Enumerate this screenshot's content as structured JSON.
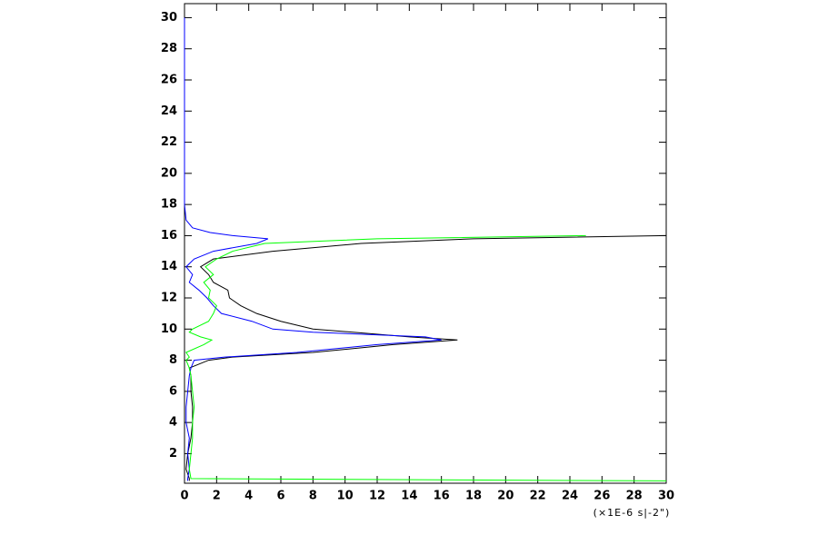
{
  "chart_data": {
    "type": "line",
    "x_label": "(×1E-6 s|-2\")",
    "heights": [
      0.25,
      0.4,
      1,
      2,
      3,
      4,
      5,
      6,
      7,
      7.5,
      8,
      8.2,
      8.5,
      9,
      9.3,
      9.5,
      9.8,
      10,
      10.5,
      11,
      11.5,
      12,
      12.5,
      13,
      13.5,
      14,
      14.5,
      15,
      15.5,
      15.8,
      16,
      16.2,
      16.5,
      17,
      18,
      20,
      25,
      30
    ],
    "series": [
      {
        "color": "#000000",
        "values": [
          0.3,
          0.3,
          0.1,
          0.2,
          0.4,
          0.5,
          0.5,
          0.4,
          0.4,
          0.3,
          1.5,
          3,
          8,
          13,
          17,
          14,
          10.5,
          8,
          6,
          4.5,
          3.5,
          2.8,
          2.7,
          1.8,
          1.5,
          1.0,
          1.8,
          5.5,
          11,
          18,
          30,
          null,
          null,
          null,
          null,
          null,
          null,
          null
        ]
      },
      {
        "color": "#0000ff",
        "values": [
          0.2,
          0.2,
          0.3,
          0.2,
          0.3,
          0.1,
          0.1,
          0.2,
          0.3,
          0.4,
          0.6,
          2.5,
          7,
          12,
          16,
          15,
          8,
          5.5,
          4.2,
          2.3,
          1.8,
          1.4,
          0.9,
          0.3,
          0.5,
          0.1,
          0.6,
          1.8,
          4.5,
          5.2,
          3.0,
          1.6,
          0.5,
          0.1,
          0,
          0,
          0,
          0
        ]
      },
      {
        "color": "#00ff00",
        "values": [
          30,
          0.4,
          0.3,
          0.4,
          0.5,
          0.5,
          0.6,
          0.5,
          0.4,
          0.3,
          0.1,
          0.3,
          0.1,
          1.2,
          1.7,
          1.0,
          0.3,
          0.5,
          1.5,
          1.8,
          2.0,
          1.5,
          1.6,
          1.2,
          1.8,
          1.3,
          2.0,
          3.0,
          5.0,
          12,
          25,
          null,
          null,
          null,
          null,
          null,
          null,
          null
        ]
      }
    ],
    "xlim": [
      0,
      30
    ],
    "xticks": [
      0,
      2,
      4,
      6,
      8,
      10,
      12,
      14,
      16,
      18,
      20,
      22,
      24,
      26,
      28,
      30
    ],
    "ylim": [
      0.1,
      30.9
    ],
    "yticks": [
      2,
      4,
      6,
      8,
      10,
      12,
      14,
      16,
      18,
      20,
      22,
      24,
      26,
      28,
      30
    ]
  }
}
